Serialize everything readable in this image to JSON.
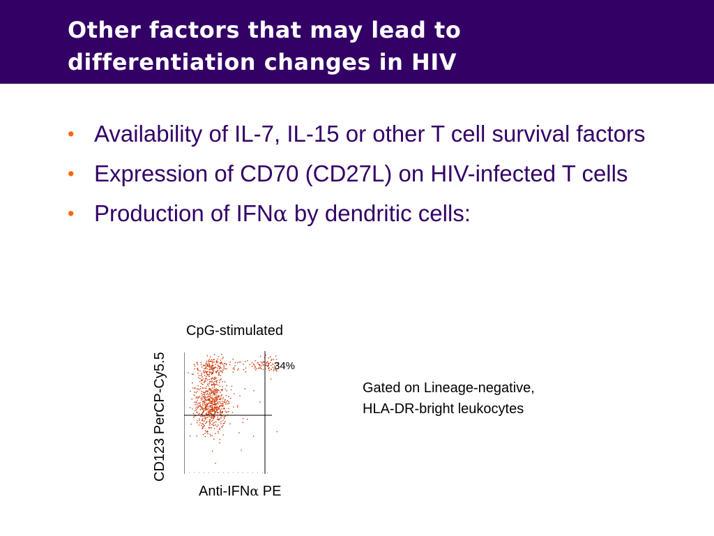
{
  "title": {
    "line1": "Other factors that may lead to",
    "line2": "differentiation changes in HIV"
  },
  "bullets": [
    {
      "marker": "•",
      "text": "Availability of IL-7, IL-15 or other T cell survival factors"
    },
    {
      "marker": "•",
      "text": "Expression of CD70 (CD27L) on HIV-infected T cells"
    },
    {
      "marker": "•",
      "prefix": "Production of IFN",
      "greek": "α",
      "suffix": " by dendritic cells:"
    }
  ],
  "figure": {
    "title": "CpG-stimulated",
    "y_label": "CD123 PerCP-Cy5.5",
    "x_label_prefix": "Anti-IFN",
    "x_label_greek": "α",
    "x_label_suffix": " PE",
    "quadrant_percent": "34%"
  },
  "gating_note": {
    "line1": "Gated on Lineage-negative,",
    "line2": "HLA-DR-bright leukocytes"
  },
  "colors": {
    "title_bar": "#330066",
    "title_text": "#ffffff",
    "body_text": "#330066",
    "bullet_marker": "#ff6600",
    "dot_plot_points": "#cc3300"
  }
}
